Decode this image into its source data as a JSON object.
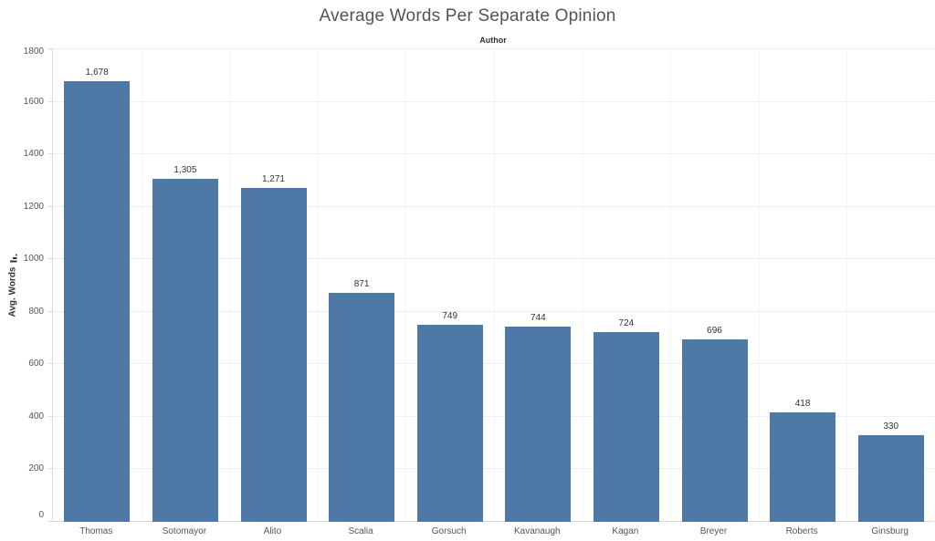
{
  "chart": {
    "title": "Average Words Per Separate Opinion",
    "column_header": "Author",
    "y_axis_label": "Avg. Words"
  },
  "chart_data": {
    "type": "bar",
    "title": "Average Words Per Separate Opinion",
    "xlabel": "Author",
    "ylabel": "Avg. Words",
    "categories": [
      "Thomas",
      "Sotomayor",
      "Alito",
      "Scalia",
      "Gorsuch",
      "Kavanaugh",
      "Kagan",
      "Breyer",
      "Roberts",
      "Ginsburg"
    ],
    "values": [
      1678,
      1305,
      1271,
      871,
      749,
      744,
      724,
      696,
      418,
      330
    ],
    "value_labels": [
      "1,678",
      "1,305",
      "1,271",
      "871",
      "749",
      "744",
      "724",
      "696",
      "418",
      "330"
    ],
    "ylim": [
      0,
      1800
    ],
    "ytick_interval": 200,
    "ytick_labels": [
      "0",
      "200",
      "400",
      "600",
      "800",
      "1000",
      "1200",
      "1400",
      "1600",
      "1800"
    ],
    "grid": true,
    "legend": "none",
    "sort": "descending",
    "bar_color": "#4e79a7"
  },
  "colors": {
    "bar": "#4e79a7",
    "title_text": "#545454",
    "axis_text": "#555555",
    "label_text": "#333333",
    "gridline": "#efefef",
    "axis_line": "#d9d9d9",
    "background": "#ffffff"
  }
}
